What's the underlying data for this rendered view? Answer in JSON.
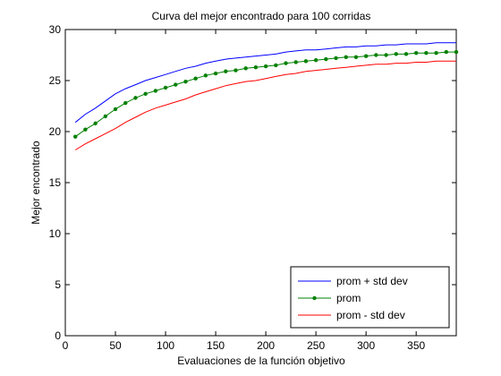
{
  "chart_data": {
    "type": "line",
    "title": "Curva del mejor encontrado para 100 corridas",
    "xlabel": "Evaluaciones de la función objetivo",
    "ylabel": "Mejor encontrado",
    "xlim": [
      0,
      390
    ],
    "ylim": [
      0,
      30
    ],
    "xticks": [
      0,
      50,
      100,
      150,
      200,
      250,
      300,
      350
    ],
    "yticks": [
      0,
      5,
      10,
      15,
      20,
      25,
      30
    ],
    "grid": false,
    "legend_position": "bottom-right",
    "x": [
      10,
      20,
      30,
      40,
      50,
      60,
      70,
      80,
      90,
      100,
      110,
      120,
      130,
      140,
      150,
      160,
      170,
      180,
      190,
      200,
      210,
      220,
      230,
      240,
      250,
      260,
      270,
      280,
      290,
      300,
      310,
      320,
      330,
      340,
      350,
      360,
      370,
      380,
      390
    ],
    "series": [
      {
        "name": "prom + std dev",
        "color": "#0000ff",
        "marker": "none",
        "values": [
          20.9,
          21.7,
          22.3,
          23.0,
          23.7,
          24.2,
          24.6,
          25.0,
          25.3,
          25.6,
          25.9,
          26.2,
          26.4,
          26.7,
          26.9,
          27.1,
          27.2,
          27.3,
          27.4,
          27.5,
          27.6,
          27.8,
          27.9,
          28.0,
          28.0,
          28.1,
          28.2,
          28.3,
          28.3,
          28.4,
          28.4,
          28.5,
          28.5,
          28.6,
          28.6,
          28.6,
          28.7,
          28.7,
          28.7
        ]
      },
      {
        "name": "prom",
        "color": "#008000",
        "marker": "dot",
        "values": [
          19.5,
          20.2,
          20.8,
          21.5,
          22.2,
          22.8,
          23.3,
          23.7,
          24.0,
          24.3,
          24.6,
          24.9,
          25.2,
          25.5,
          25.7,
          25.9,
          26.0,
          26.2,
          26.3,
          26.4,
          26.5,
          26.7,
          26.8,
          26.9,
          27.0,
          27.1,
          27.2,
          27.3,
          27.3,
          27.4,
          27.5,
          27.5,
          27.6,
          27.6,
          27.7,
          27.7,
          27.7,
          27.8,
          27.8
        ]
      },
      {
        "name": "prom - std dev",
        "color": "#ff0000",
        "marker": "none",
        "values": [
          18.2,
          18.8,
          19.3,
          19.8,
          20.3,
          20.9,
          21.4,
          21.9,
          22.3,
          22.6,
          22.9,
          23.2,
          23.6,
          23.9,
          24.2,
          24.5,
          24.7,
          24.9,
          25.0,
          25.2,
          25.4,
          25.6,
          25.7,
          25.9,
          26.0,
          26.1,
          26.2,
          26.3,
          26.4,
          26.5,
          26.6,
          26.6,
          26.7,
          26.7,
          26.8,
          26.8,
          26.9,
          26.9,
          26.9
        ]
      }
    ]
  }
}
